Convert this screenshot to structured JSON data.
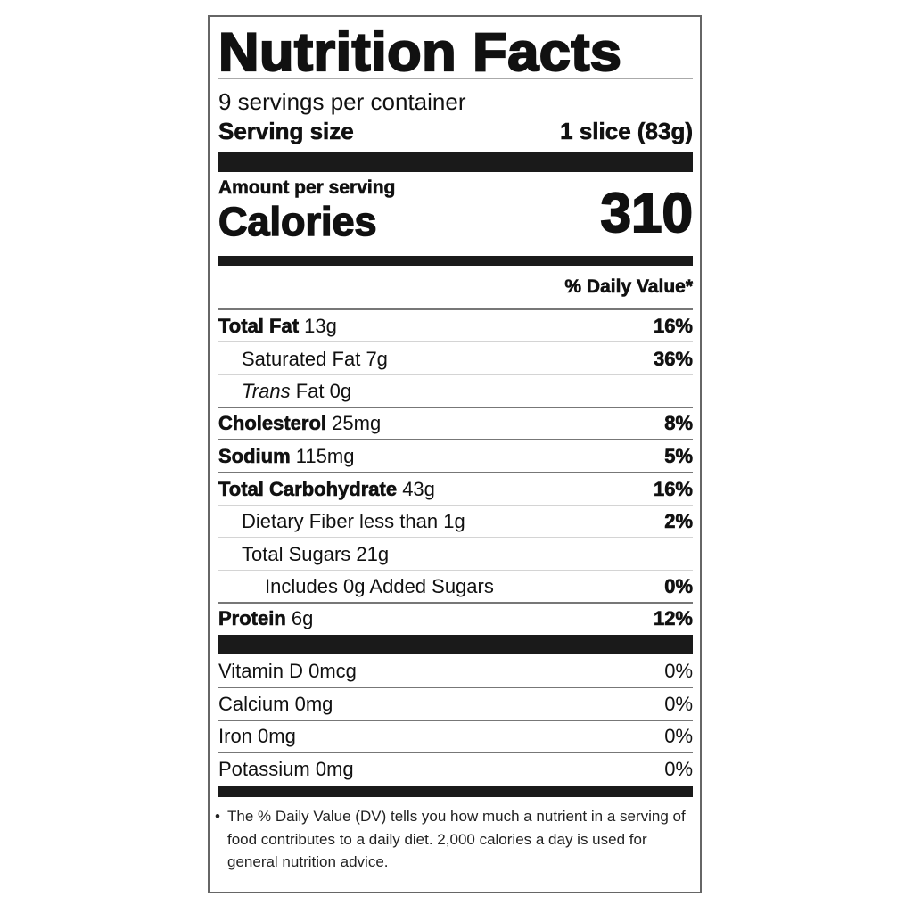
{
  "title": "Nutrition Facts",
  "servings_per_container": "9 servings per container",
  "serving_size": {
    "label": "Serving size",
    "value": "1 slice (83g)"
  },
  "amount_per_serving": "Amount per serving",
  "calories": {
    "label": "Calories",
    "value": "310"
  },
  "daily_value_header": "% Daily Value*",
  "nutrients": [
    {
      "name": "Total Fat",
      "amount": "13g",
      "dv": "16%"
    },
    {
      "name": "Saturated Fat",
      "amount": "7g",
      "dv": "36%"
    },
    {
      "name_italic": "Trans",
      "name": "Fat",
      "amount": "0g",
      "dv": ""
    },
    {
      "name": "Cholesterol",
      "amount": "25mg",
      "dv": "8%"
    },
    {
      "name": "Sodium",
      "amount": "115mg",
      "dv": "5%"
    },
    {
      "name": "Total Carbohydrate",
      "amount": "43g",
      "dv": "16%"
    },
    {
      "name": "Dietary Fiber",
      "amount": "less than 1g",
      "dv": "2%"
    },
    {
      "name": "Total Sugars",
      "amount": "21g",
      "dv": ""
    },
    {
      "name": "Includes 0g Added Sugars",
      "amount": "",
      "dv": "0%"
    },
    {
      "name": "Protein",
      "amount": "6g",
      "dv": "12%"
    }
  ],
  "micronutrients": [
    {
      "name": "Vitamin D",
      "amount": "0mcg",
      "dv": "0%"
    },
    {
      "name": "Calcium",
      "amount": "0mg",
      "dv": "0%"
    },
    {
      "name": "Iron",
      "amount": "0mg",
      "dv": "0%"
    },
    {
      "name": "Potassium",
      "amount": "0mg",
      "dv": "0%"
    }
  ],
  "footnote": {
    "bullet": "•",
    "text": "The % Daily Value (DV) tells you how much a nutrient in a serving of food contributes to a daily diet. 2,000 calories a day is used for general nutrition advice."
  }
}
